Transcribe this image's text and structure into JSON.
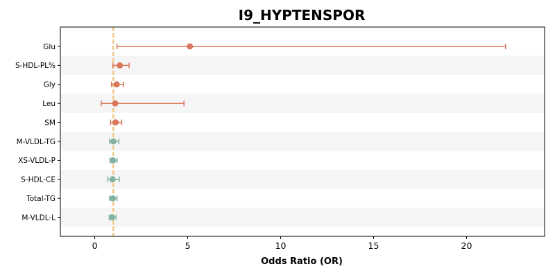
{
  "chart_data": {
    "type": "forest",
    "title": "I9_HYPTENSPOR",
    "xlabel": "Odds Ratio (OR)",
    "ylabel": "",
    "xlim": [
      -1.85,
      24.2
    ],
    "xticks": [
      0,
      5,
      10,
      15,
      20
    ],
    "reference_line": 1,
    "grid": false,
    "row_banding": true,
    "colors": {
      "risk": "#d9785c",
      "protective": "#82b39e",
      "reference_line": "#f0c987",
      "band": "#f5f5f5",
      "axis": "#000000"
    },
    "rows": [
      {
        "label": "Glu",
        "or": 5.12,
        "lower": 1.2,
        "upper": 22.1,
        "group": "risk"
      },
      {
        "label": "S-HDL-PL%",
        "or": 1.35,
        "lower": 0.98,
        "upper": 1.85,
        "group": "risk"
      },
      {
        "label": "Gly",
        "or": 1.18,
        "lower": 0.9,
        "upper": 1.55,
        "group": "risk"
      },
      {
        "label": "Leu",
        "or": 1.1,
        "lower": 0.35,
        "upper": 4.8,
        "group": "risk"
      },
      {
        "label": "SM",
        "or": 1.12,
        "lower": 0.85,
        "upper": 1.45,
        "group": "risk"
      },
      {
        "label": "M-VLDL-TG",
        "or": 1.0,
        "lower": 0.8,
        "upper": 1.3,
        "group": "protective"
      },
      {
        "label": "XS-VLDL-P",
        "or": 0.98,
        "lower": 0.82,
        "upper": 1.2,
        "group": "protective"
      },
      {
        "label": "S-HDL-CE",
        "or": 0.96,
        "lower": 0.7,
        "upper": 1.32,
        "group": "protective"
      },
      {
        "label": "Total-TG",
        "or": 0.97,
        "lower": 0.8,
        "upper": 1.2,
        "group": "protective"
      },
      {
        "label": "M-VLDL-L",
        "or": 0.93,
        "lower": 0.78,
        "upper": 1.15,
        "group": "protective"
      }
    ]
  }
}
